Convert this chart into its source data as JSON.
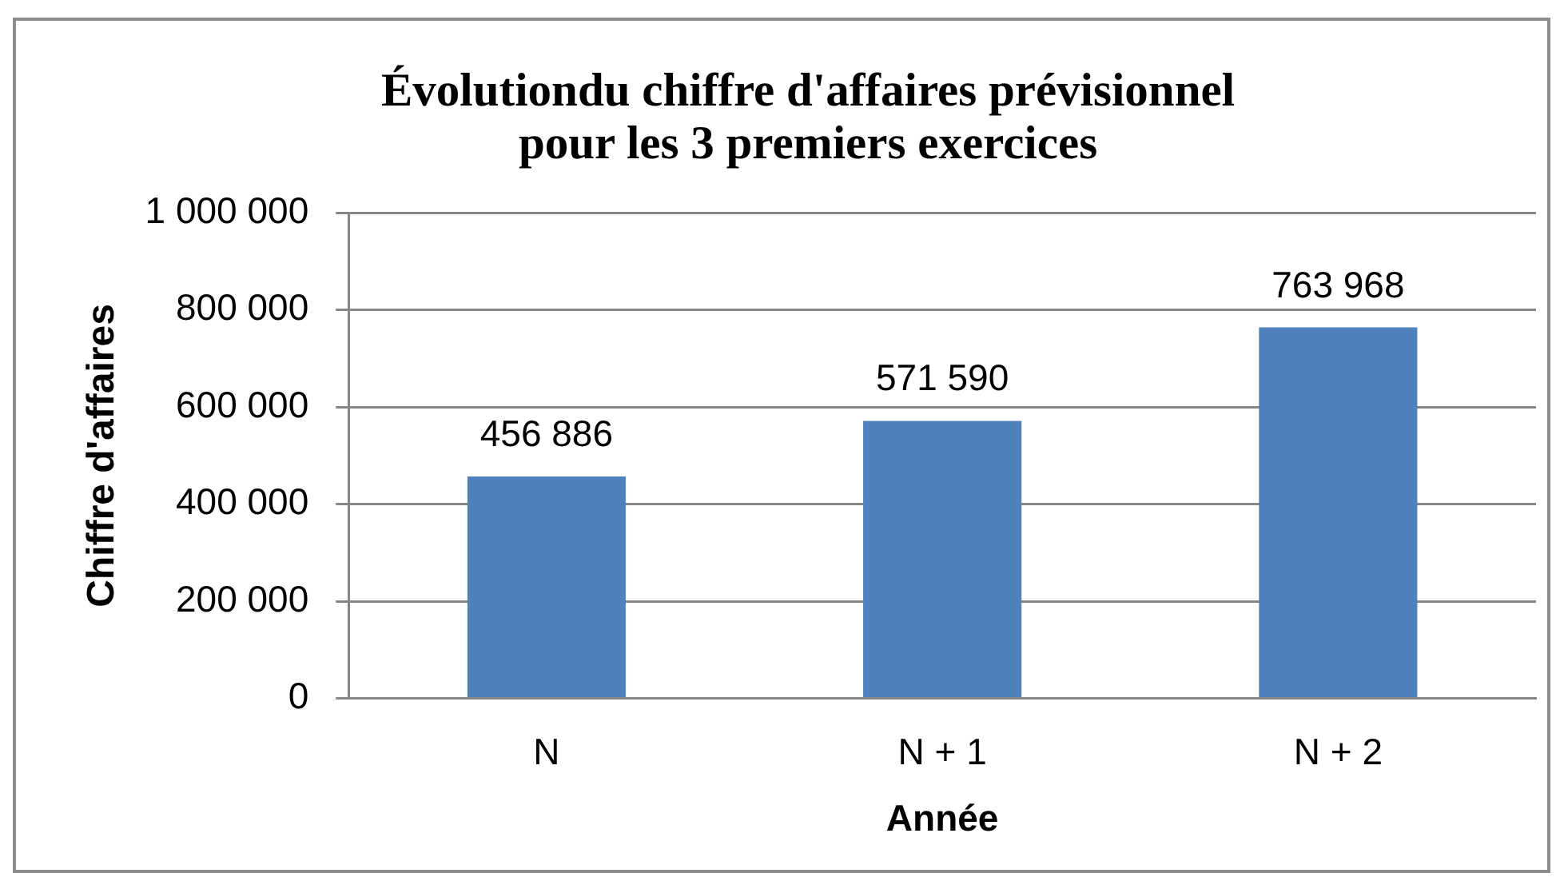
{
  "chart_data": {
    "type": "bar",
    "title": "Évolutiondu chiffre d'affaires prévisionnel pour les 3 premiers exercices",
    "xlabel": "Année",
    "ylabel": "Chiffre d'affaires",
    "categories": [
      "N",
      "N + 1",
      "N + 2"
    ],
    "values": [
      456886,
      571590,
      763968
    ],
    "value_labels": [
      "456 886",
      "571 590",
      "763 968"
    ],
    "color": "#4f81bd",
    "ylim": [
      0,
      1000000
    ],
    "yticks": [
      {
        "value": 0,
        "label": "0"
      },
      {
        "value": 200000,
        "label": "200 000"
      },
      {
        "value": 400000,
        "label": "400 000"
      },
      {
        "value": 600000,
        "label": "600 000"
      },
      {
        "value": 800000,
        "label": "800 000"
      },
      {
        "value": 1000000,
        "label": "1 000 000"
      }
    ],
    "grid": "y"
  }
}
